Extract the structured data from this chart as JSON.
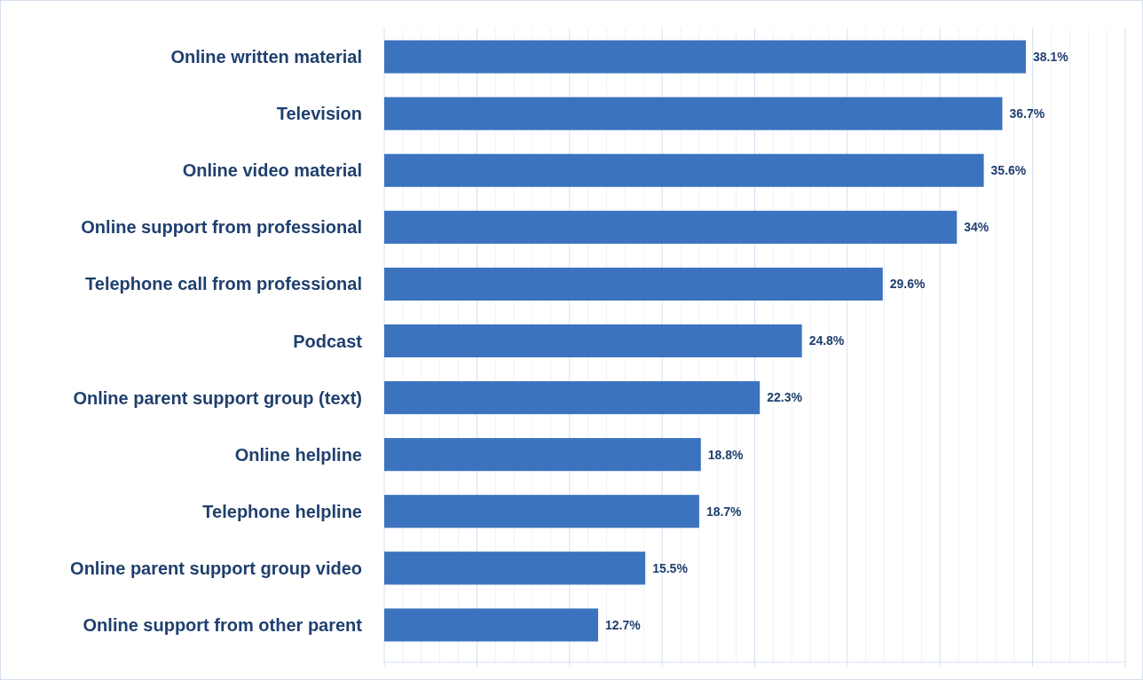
{
  "chart_data": {
    "type": "bar",
    "orientation": "horizontal",
    "categories": [
      "Online written material",
      "Television",
      "Online video material",
      "Online support from professional",
      "Telephone call from professional",
      "Podcast",
      "Online parent support group (text)",
      "Online helpline",
      "Telephone helpline",
      "Online parent support group video",
      "Online support from other parent"
    ],
    "values": [
      38.1,
      36.7,
      35.6,
      34,
      29.6,
      24.8,
      22.3,
      18.8,
      18.7,
      15.5,
      12.7
    ],
    "value_labels": [
      "38.1%",
      "36.7%",
      "35.6%",
      "34%",
      "29.6%",
      "24.8%",
      "22.3%",
      "18.8%",
      "18.7%",
      "15.5%",
      "12.7%"
    ],
    "color": "#3b73bf",
    "xlim": [
      0,
      44
    ],
    "xticks": [
      {
        "value": 0,
        "label": null
      },
      {
        "value": 5.5,
        "label": null
      },
      {
        "value": 11,
        "label": null
      },
      {
        "value": 16.5,
        "label": null
      },
      {
        "value": 22,
        "label": null
      },
      {
        "value": 27.5,
        "label": null
      },
      {
        "value": 33,
        "label": null
      },
      {
        "value": 38.5,
        "label": null
      },
      {
        "value": 44,
        "label": null
      }
    ],
    "grid": "x",
    "tick_labels": "y"
  }
}
